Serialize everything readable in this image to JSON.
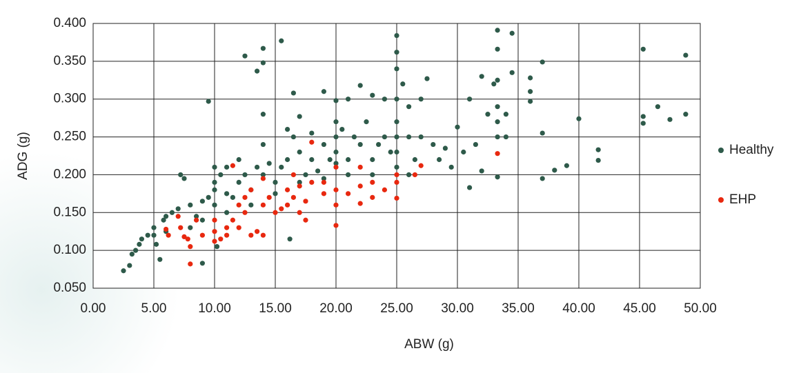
{
  "chart_data": {
    "type": "scatter",
    "x_label": "ABW (g)",
    "y_label": "ADG (g)",
    "xlim": [
      0,
      50
    ],
    "ylim": [
      0.05,
      0.4
    ],
    "xticks": [
      {
        "value": 0,
        "label": "0.00"
      },
      {
        "value": 5,
        "label": "5.00"
      },
      {
        "value": 10,
        "label": "10.00"
      },
      {
        "value": 15,
        "label": "15.00"
      },
      {
        "value": 20,
        "label": "20.00"
      },
      {
        "value": 25,
        "label": "25.00"
      },
      {
        "value": 30,
        "label": "30.00"
      },
      {
        "value": 35,
        "label": "35.00"
      },
      {
        "value": 40,
        "label": "40.00"
      },
      {
        "value": 45,
        "label": "45.00"
      },
      {
        "value": 50,
        "label": "50.00"
      }
    ],
    "yticks": [
      {
        "value": 0.05,
        "label": "0.050"
      },
      {
        "value": 0.1,
        "label": "0.100"
      },
      {
        "value": 0.15,
        "label": "0.150"
      },
      {
        "value": 0.2,
        "label": "0.200"
      },
      {
        "value": 0.25,
        "label": "0.250"
      },
      {
        "value": 0.3,
        "label": "0.300"
      },
      {
        "value": 0.35,
        "label": "0.350"
      },
      {
        "value": 0.4,
        "label": "0.400"
      }
    ],
    "grid": true,
    "legend": "right",
    "series": [
      {
        "name": "Healthy",
        "color": "#2e5a4a",
        "x": [
          2.5,
          3,
          3.2,
          3.5,
          3.8,
          4,
          4.5,
          5,
          5.2,
          5.5,
          5.8,
          6,
          6.5,
          7,
          7.2,
          7.5,
          8,
          8.5,
          9,
          9,
          9.5,
          9.5,
          10,
          10,
          10,
          10,
          10.2,
          10.5,
          11,
          11,
          11.5,
          12,
          12,
          12.5,
          12.5,
          13,
          13.5,
          13.5,
          14,
          14,
          14,
          14,
          14,
          14.5,
          15,
          15.5,
          15.5,
          16,
          16,
          16.2,
          16.5,
          16.5,
          17,
          17,
          17.5,
          18,
          18,
          18.5,
          19,
          19,
          19.5,
          20,
          20,
          20,
          20,
          20,
          20.5,
          21,
          21,
          21.5,
          22,
          22,
          22.5,
          23,
          23,
          23.5,
          24,
          24,
          24.5,
          25,
          25,
          25,
          25,
          25,
          25,
          25,
          25,
          25.5,
          26,
          26,
          26.5,
          27,
          27,
          27.5,
          28,
          28.5,
          29,
          29.5,
          30,
          30.5,
          31,
          31,
          31.5,
          32,
          32,
          32.5,
          33,
          33.3,
          33.3,
          33.3,
          33.3,
          33.3,
          33.3,
          33.3,
          34,
          34,
          34.5,
          34.5,
          36,
          36,
          36,
          37,
          37,
          37,
          38,
          39,
          40,
          41.6,
          41.6,
          45.3,
          45.3,
          45.3,
          46.5,
          47.5,
          48.8,
          48.8,
          26,
          23,
          21,
          19,
          17,
          15,
          13,
          11,
          9,
          8,
          6,
          5
        ],
        "values": [
          0.073,
          0.08,
          0.095,
          0.1,
          0.108,
          0.115,
          0.12,
          0.13,
          0.108,
          0.088,
          0.14,
          0.145,
          0.15,
          0.155,
          0.2,
          0.195,
          0.16,
          0.145,
          0.083,
          0.165,
          0.297,
          0.17,
          0.21,
          0.18,
          0.16,
          0.19,
          0.105,
          0.2,
          0.175,
          0.21,
          0.17,
          0.22,
          0.19,
          0.357,
          0.2,
          0.18,
          0.337,
          0.21,
          0.367,
          0.348,
          0.28,
          0.24,
          0.2,
          0.215,
          0.19,
          0.377,
          0.21,
          0.26,
          0.22,
          0.115,
          0.308,
          0.25,
          0.277,
          0.23,
          0.2,
          0.255,
          0.22,
          0.205,
          0.31,
          0.24,
          0.22,
          0.298,
          0.27,
          0.25,
          0.23,
          0.215,
          0.26,
          0.3,
          0.22,
          0.25,
          0.318,
          0.24,
          0.27,
          0.305,
          0.22,
          0.24,
          0.3,
          0.25,
          0.23,
          0.384,
          0.362,
          0.34,
          0.3,
          0.27,
          0.25,
          0.23,
          0.21,
          0.32,
          0.29,
          0.25,
          0.22,
          0.3,
          0.25,
          0.327,
          0.24,
          0.22,
          0.235,
          0.21,
          0.263,
          0.23,
          0.183,
          0.3,
          0.24,
          0.205,
          0.33,
          0.28,
          0.32,
          0.391,
          0.366,
          0.325,
          0.29,
          0.27,
          0.25,
          0.197,
          0.25,
          0.28,
          0.387,
          0.335,
          0.328,
          0.31,
          0.297,
          0.349,
          0.255,
          0.195,
          0.206,
          0.212,
          0.274,
          0.233,
          0.219,
          0.366,
          0.277,
          0.268,
          0.29,
          0.273,
          0.358,
          0.28,
          0.2,
          0.2,
          0.2,
          0.195,
          0.19,
          0.175,
          0.16,
          0.15,
          0.14,
          0.13,
          0.125,
          0.12
        ]
      },
      {
        "name": "EHP",
        "color": "#e8280f",
        "x": [
          6,
          6.2,
          7,
          7.2,
          7.5,
          7.8,
          8,
          8,
          8.5,
          9,
          10,
          10,
          10,
          10.5,
          11,
          11,
          11.5,
          11.5,
          12,
          12,
          12.5,
          12.5,
          13,
          13,
          13.5,
          14,
          14,
          14,
          14.5,
          15,
          15.5,
          16,
          16,
          16.5,
          16.5,
          17,
          17,
          17.5,
          17.5,
          18,
          18,
          19,
          19,
          20,
          20,
          20,
          20,
          21,
          22,
          22,
          22,
          23,
          23,
          24,
          25,
          25,
          25,
          26.5,
          27,
          33.3
        ],
        "values": [
          0.128,
          0.12,
          0.145,
          0.13,
          0.118,
          0.115,
          0.082,
          0.105,
          0.14,
          0.12,
          0.14,
          0.125,
          0.112,
          0.115,
          0.13,
          0.12,
          0.212,
          0.14,
          0.16,
          0.13,
          0.17,
          0.15,
          0.18,
          0.12,
          0.125,
          0.195,
          0.16,
          0.12,
          0.17,
          0.15,
          0.155,
          0.18,
          0.16,
          0.17,
          0.2,
          0.15,
          0.185,
          0.14,
          0.165,
          0.243,
          0.19,
          0.175,
          0.19,
          0.21,
          0.18,
          0.16,
          0.133,
          0.175,
          0.21,
          0.185,
          0.162,
          0.19,
          0.17,
          0.18,
          0.2,
          0.19,
          0.169,
          0.2,
          0.212,
          0.228
        ]
      }
    ]
  }
}
